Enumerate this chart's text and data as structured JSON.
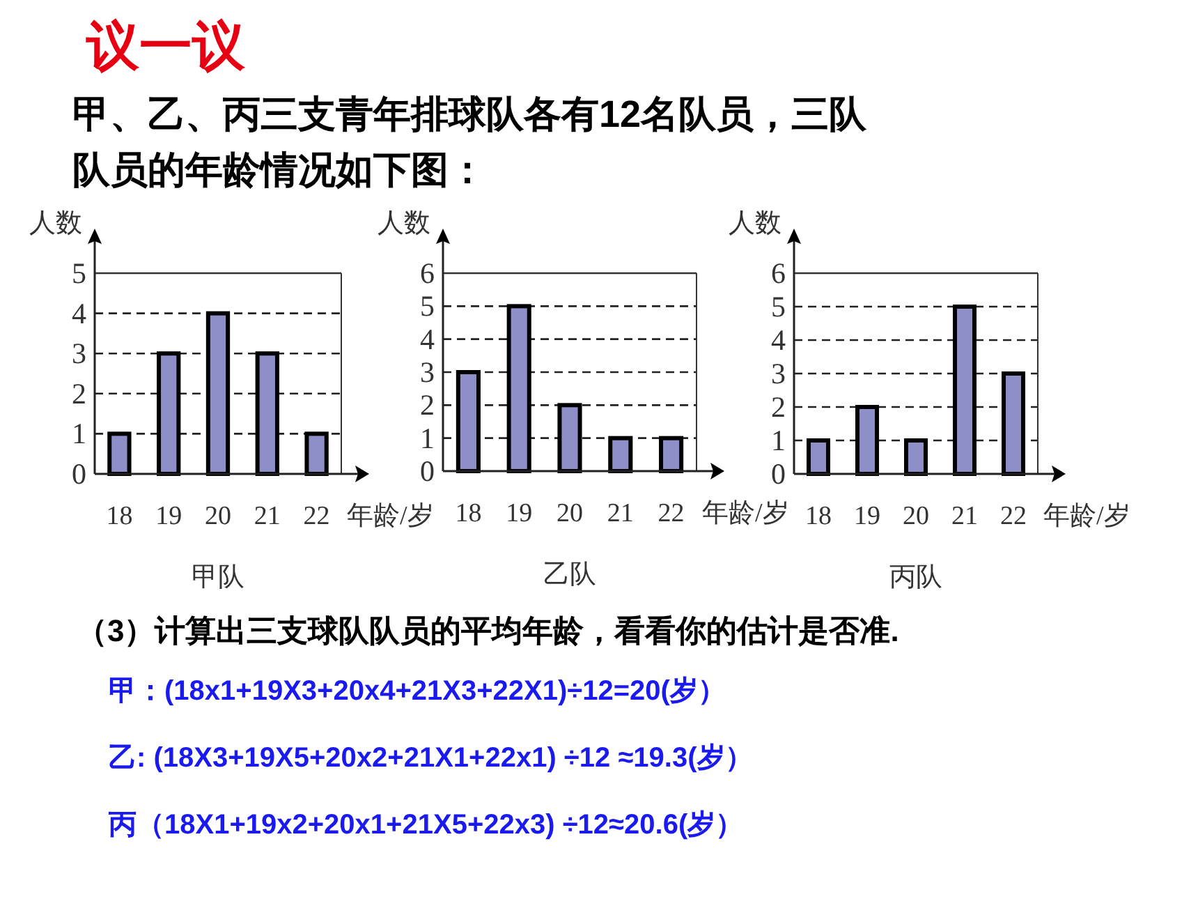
{
  "chart_data": [
    {
      "type": "bar",
      "title": "甲队",
      "xlabel": "年龄/岁",
      "ylabel": "人数",
      "categories": [
        "18",
        "19",
        "20",
        "21",
        "22"
      ],
      "values": [
        1,
        3,
        4,
        3,
        1
      ],
      "color": "#8e8ec8",
      "ylim": [
        0,
        5
      ],
      "yticks": [
        0,
        1,
        2,
        3,
        4,
        5
      ],
      "grid": "y",
      "annotations": [
        "议一议",
        "甲、乙、丙三支青年排球队各有12名队员，三队队员的年龄情况如下图："
      ]
    },
    {
      "type": "bar",
      "title": "乙队",
      "xlabel": "年龄/岁",
      "ylabel": "人数",
      "categories": [
        "18",
        "19",
        "20",
        "21",
        "22"
      ],
      "values": [
        3,
        5,
        2,
        1,
        1
      ],
      "color": "#8e8ec8",
      "ylim": [
        0,
        6
      ],
      "yticks": [
        0,
        1,
        2,
        3,
        4,
        5,
        6
      ],
      "grid": "y"
    },
    {
      "type": "bar",
      "title": "丙队",
      "xlabel": "年龄/岁",
      "ylabel": "人数",
      "categories": [
        "18",
        "19",
        "20",
        "21",
        "22"
      ],
      "values": [
        1,
        2,
        1,
        5,
        3
      ],
      "color": "#8e8ec8",
      "ylim": [
        0,
        6
      ],
      "yticks": [
        0,
        1,
        2,
        3,
        4,
        5,
        6
      ],
      "grid": "y",
      "annotations": [
        "（3）计算出三支球队队员的平均年龄，看看你的估计是否准.",
        "甲：(18x1+19X3+20x4+21X3+22X1)÷12=20(岁）",
        "乙: (18X3+19X5+20x2+21X1+22x1) ÷12 ≈19.3(岁）",
        "丙（18X1+19x2+20x1+21X5+22x3) ÷12≈20.6(岁）"
      ]
    }
  ]
}
